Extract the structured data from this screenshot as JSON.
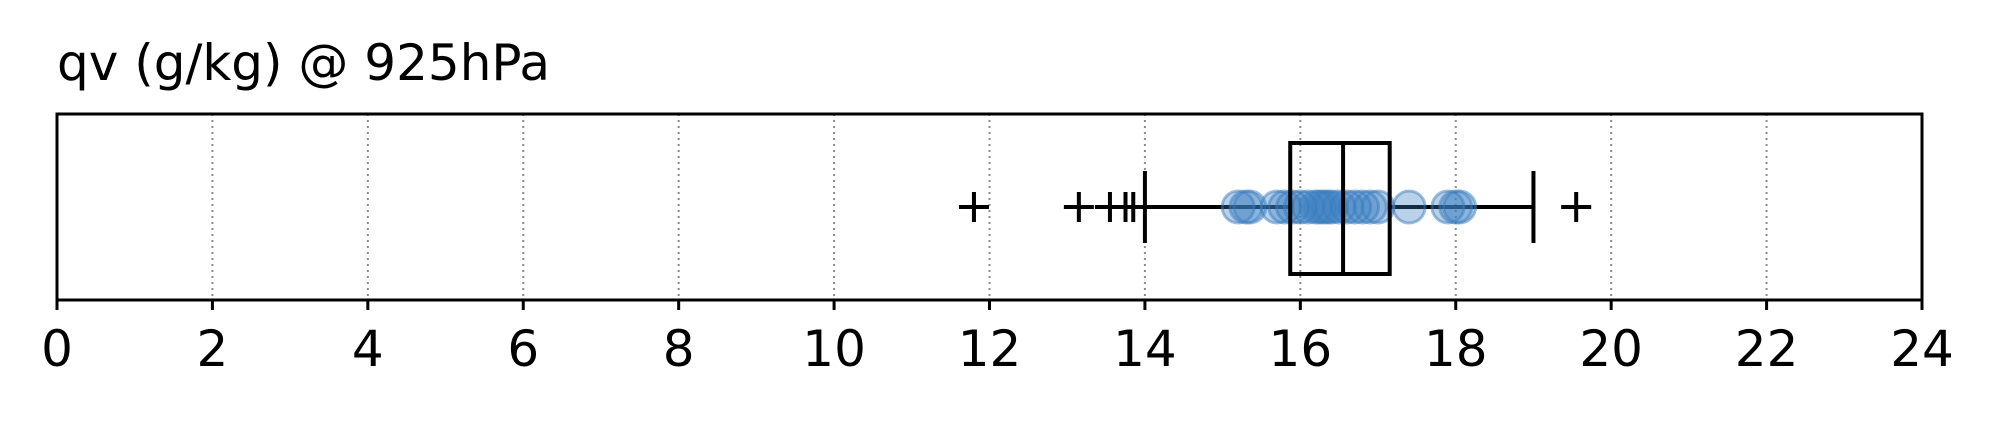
{
  "chart_data": {
    "type": "boxplot",
    "title": "qv (g/kg) @ 925hPa",
    "xlabel": "",
    "ylabel": "",
    "xlim": [
      0,
      24
    ],
    "xticks": [
      0,
      2,
      4,
      6,
      8,
      10,
      12,
      14,
      16,
      18,
      20,
      22,
      24
    ],
    "grid": "vertical dotted",
    "box": {
      "whisker_low": 14.0,
      "q1": 15.87,
      "median": 16.55,
      "q3": 17.15,
      "whisker_high": 19.0
    },
    "outliers": [
      11.8,
      13.15,
      13.55,
      13.75,
      13.85,
      19.55
    ],
    "points": [
      15.2,
      15.3,
      15.35,
      15.7,
      15.8,
      15.9,
      16.0,
      16.1,
      16.2,
      16.25,
      16.3,
      16.35,
      16.4,
      16.5,
      16.6,
      16.7,
      16.8,
      16.9,
      17.0,
      17.4,
      17.9,
      18.0,
      18.05
    ],
    "colors": {
      "points": "#3a7ebf",
      "box": "#000000",
      "grid": "#8c8c8c"
    }
  }
}
